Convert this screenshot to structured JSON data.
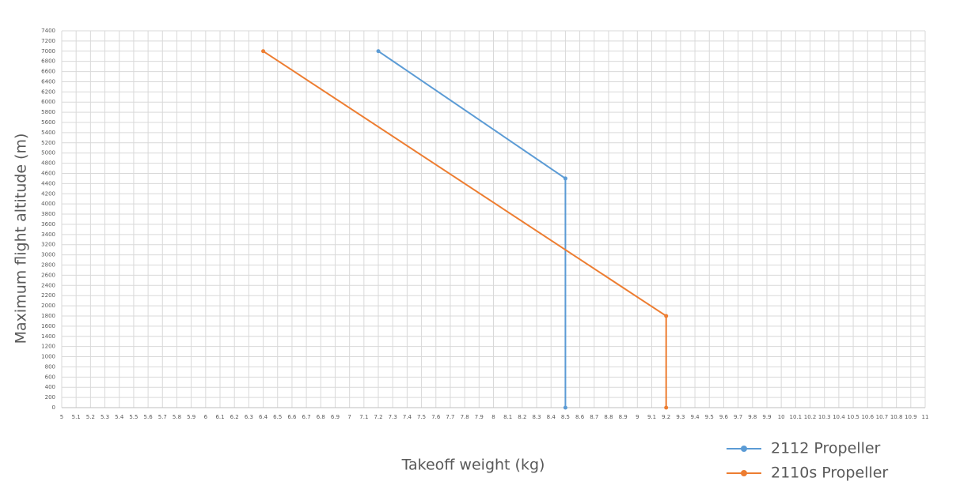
{
  "chart_data": {
    "type": "line",
    "x_label": "Takeoff weight (kg)",
    "y_label": "Maximum flight altitude (m)",
    "series": [
      {
        "name": "2112 Propeller",
        "color": "#5b9bd5",
        "x": [
          7.2,
          8.5,
          8.5
        ],
        "values": [
          7000,
          4500,
          0
        ]
      },
      {
        "name": "2110s Propeller",
        "color": "#ed7d31",
        "x": [
          6.4,
          9.2,
          9.2
        ],
        "values": [
          7000,
          1800,
          0
        ]
      }
    ],
    "xlim": [
      5,
      11
    ],
    "xticks": [
      5,
      5.1,
      5.2,
      5.3,
      5.4,
      5.5,
      5.6,
      5.7,
      5.8,
      5.9,
      6,
      6.1,
      6.2,
      6.3,
      6.4,
      6.5,
      6.6,
      6.7,
      6.8,
      6.9,
      7,
      7.1,
      7.2,
      7.3,
      7.4,
      7.5,
      7.6,
      7.7,
      7.8,
      7.9,
      8,
      8.1,
      8.2,
      8.3,
      8.4,
      8.5,
      8.6,
      8.7,
      8.8,
      8.9,
      9,
      9.1,
      9.2,
      9.3,
      9.4,
      9.5,
      9.6,
      9.7,
      9.8,
      9.9,
      10,
      10.1,
      10.2,
      10.3,
      10.4,
      10.5,
      10.6,
      10.7,
      10.8,
      10.9,
      11
    ],
    "ylim": [
      0,
      7400
    ],
    "yticks": [
      0,
      200,
      400,
      600,
      800,
      1000,
      1200,
      1400,
      1600,
      1800,
      2000,
      2200,
      2400,
      2600,
      2800,
      3000,
      3200,
      3400,
      3600,
      3800,
      4000,
      4200,
      4400,
      4600,
      4800,
      5000,
      5200,
      5400,
      5600,
      5800,
      6000,
      6200,
      6400,
      6600,
      6800,
      7000,
      7200,
      7400
    ],
    "grid": true,
    "legend": "bottom-right"
  }
}
